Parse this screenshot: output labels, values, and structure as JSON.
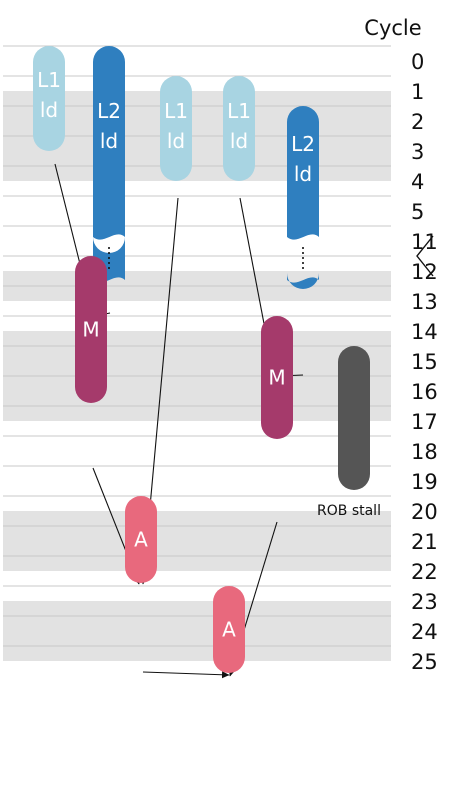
{
  "title": "Cycle",
  "cycle_labels": [
    "0",
    "1",
    "2",
    "3",
    "4",
    "5",
    "11",
    "12",
    "13",
    "14",
    "15",
    "16",
    "17",
    "18",
    "19",
    "20",
    "21",
    "22",
    "23",
    "24",
    "25"
  ],
  "shaded_bands": [
    [
      2,
      4
    ],
    [
      13,
      13
    ],
    [
      15,
      17
    ],
    [
      21,
      22
    ],
    [
      24,
      25
    ]
  ],
  "colors": {
    "l1": "#a8d4e2",
    "l2": "#2f7fbf",
    "mul": "#a53a6b",
    "add": "#e8697d",
    "rob": "#555555",
    "band": "#e2e2e2",
    "line": "#c8c8c8",
    "arrow": "#111111"
  },
  "blocks": [
    {
      "id": "l1-ld-a",
      "kind": "l1",
      "lines": [
        "L1",
        "ld"
      ],
      "start": 0,
      "end": 3.5
    },
    {
      "id": "l2-ld-a",
      "kind": "l2",
      "lines": [
        "L2",
        "ld"
      ],
      "start": 0,
      "end": 11.9,
      "broken": true
    },
    {
      "id": "l1-ld-b",
      "kind": "l1",
      "lines": [
        "L1",
        "ld"
      ],
      "start": 1,
      "end": 4.5
    },
    {
      "id": "l1-ld-c",
      "kind": "l1",
      "lines": [
        "L1",
        "ld"
      ],
      "start": 1,
      "end": 4.5
    },
    {
      "id": "l2-ld-b",
      "kind": "l2",
      "lines": [
        "L2",
        "ld"
      ],
      "start": 2,
      "end": 13.1,
      "broken": true
    },
    {
      "id": "mul-a",
      "kind": "mul",
      "lines": [
        "M"
      ],
      "start": 12,
      "end": 16.9
    },
    {
      "id": "mul-b",
      "kind": "mul",
      "lines": [
        "M"
      ],
      "start": 14,
      "end": 18.1
    },
    {
      "id": "rob-stall",
      "kind": "rob",
      "lines": [],
      "start": 15,
      "end": 19.8
    },
    {
      "id": "add-a",
      "kind": "add",
      "lines": [
        "A"
      ],
      "start": 20,
      "end": 22.9
    },
    {
      "id": "add-b",
      "kind": "add",
      "lines": [
        "A"
      ],
      "start": 23,
      "end": 25.9
    }
  ],
  "rob_label": "ROB stall",
  "edges": [
    {
      "from": "l1-ld-a",
      "to": "mul-a"
    },
    {
      "from": "l2-ld-a",
      "to": "mul-a"
    },
    {
      "from": "l1-ld-b",
      "to": "add-a"
    },
    {
      "from": "mul-a",
      "to": "add-a"
    },
    {
      "from": "l1-ld-c",
      "to": "mul-b"
    },
    {
      "from": "l2-ld-b",
      "to": "mul-b"
    },
    {
      "from": "add-a",
      "to": "add-b"
    },
    {
      "from": "mul-b",
      "to": "add-b"
    }
  ]
}
